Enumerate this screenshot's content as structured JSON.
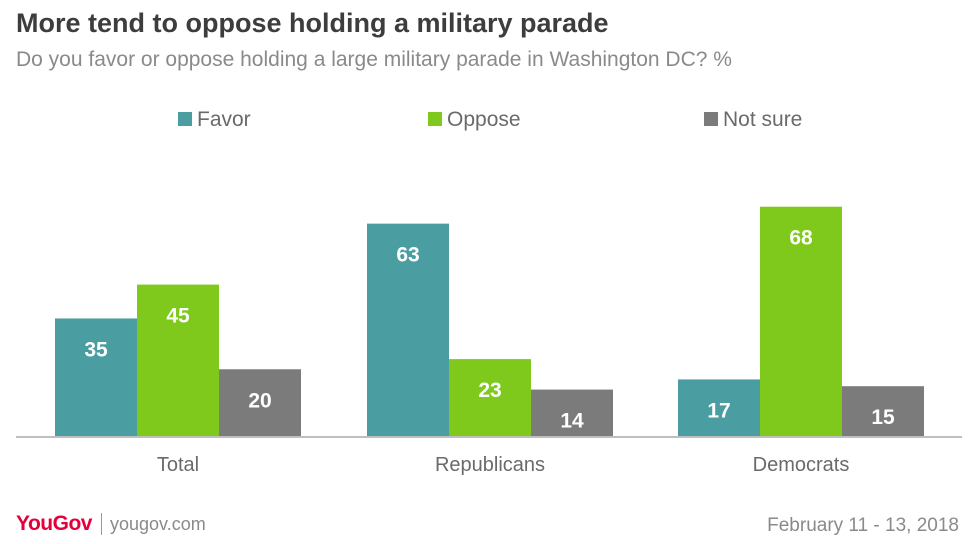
{
  "header": {
    "title": "More tend to oppose holding a military parade",
    "subtitle": "Do you favor or oppose holding a large military parade in Washington DC? %"
  },
  "chart_data": {
    "type": "bar",
    "categories": [
      "Total",
      "Republicans",
      "Democrats"
    ],
    "series": [
      {
        "name": "Favor",
        "values": [
          35,
          63,
          17
        ],
        "color": "#4a9ea1"
      },
      {
        "name": "Oppose",
        "values": [
          45,
          23,
          68
        ],
        "color": "#7ec91c"
      },
      {
        "name": "Not sure",
        "values": [
          20,
          14,
          15
        ],
        "color": "#7b7b7b"
      }
    ],
    "ylim": [
      0,
      75
    ],
    "grid": false,
    "legend_position": "top",
    "data_labels": true
  },
  "footer": {
    "brand": "YouGov",
    "site": "yougov.com",
    "date": "February 11 - 13, 2018"
  },
  "colors": {
    "title": "#3d3d3d",
    "subtitle": "#8a8a8a",
    "brand": "#e4003b"
  }
}
